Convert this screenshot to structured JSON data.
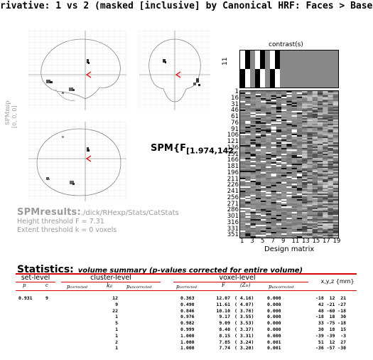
{
  "title": "rivative: 1 vs 2 (masked [inclusive] by Canonical HRF: Faces > Base",
  "glass_brain": {
    "side_label": "SPMmip",
    "side_coords": "[0, 0, 0]"
  },
  "contrast": {
    "title": "contrast(s)",
    "number": "11"
  },
  "design_matrix": {
    "xlabel": "Design matrix",
    "row_ticks": [
      "1",
      "16",
      "31",
      "46",
      "61",
      "76",
      "91",
      "106",
      "121",
      "136",
      "151",
      "166",
      "181",
      "196",
      "211",
      "226",
      "241",
      "256",
      "271",
      "286",
      "301",
      "316",
      "331",
      "351"
    ],
    "col_ticks": [
      "1",
      "3",
      "5",
      "7",
      "9",
      "11",
      "13",
      "15",
      "17",
      "19"
    ]
  },
  "spm_stat": {
    "main": "SPM{F",
    "df": "[1.974,142."
  },
  "results": {
    "heading": "SPMresults:",
    "path": "./dick/RHexp/Stats/CatStats",
    "height": "Height threshold F = 7.31",
    "extent": "Extent threshold k = 0 voxels"
  },
  "stats": {
    "heading": "Statistics:",
    "subheading": "volume summary (p-values corrected for entire volume)",
    "set_level": "set-level",
    "cluster_level": "cluster-level",
    "voxel_level": "voxel-level",
    "xyz": "x,y,z {mm}",
    "col_p": "p",
    "col_c": "c",
    "col_pc": "p",
    "col_pc_sub": "corrected",
    "col_ke": "k",
    "col_ke_sub": "E",
    "col_pu": "p",
    "col_pu_sub": "uncorrected",
    "col_vpc": "p",
    "col_vpc_sub": "corrected",
    "col_F": "F",
    "col_Z": "(Z",
    "col_Z_sub": "≡",
    "col_Z_end": ")",
    "col_vpu": "p",
    "col_vpu_sub": "uncorrected",
    "set_p": "0.931",
    "set_c": "9",
    "rows": [
      {
        "ke": "12",
        "pc": "0.363",
        "F": "12.07",
        "Z": "( 4.16)",
        "pu": "0.000",
        "xyz": "-18  12  21"
      },
      {
        "ke": "9",
        "pc": "0.490",
        "F": "11.61",
        "Z": "( 4.07)",
        "pu": "0.000",
        "xyz": " 42 -21 -27"
      },
      {
        "ke": "22",
        "pc": "0.846",
        "F": "10.10",
        "Z": "( 3.76)",
        "pu": "0.000",
        "xyz": " 48 -60 -18"
      },
      {
        "ke": "1",
        "pc": "0.976",
        "F": "9.17",
        "Z": "( 3.55)",
        "pu": "0.000",
        "xyz": "-18  18  30"
      },
      {
        "ke": "5",
        "pc": "0.982",
        "F": "9.09",
        "Z": "( 3.53)",
        "pu": "0.000",
        "xyz": " 33 -75 -18"
      },
      {
        "ke": "1",
        "pc": "0.999",
        "F": "8.40",
        "Z": "( 3.37)",
        "pu": "0.000",
        "xyz": " 30  18  15"
      },
      {
        "ke": "1",
        "pc": "1.000",
        "F": "8.15",
        "Z": "( 3.31)",
        "pu": "0.000",
        "xyz": "-39 -39  -3"
      },
      {
        "ke": "2",
        "pc": "1.000",
        "F": "7.85",
        "Z": "( 3.24)",
        "pu": "0.001",
        "xyz": " 51  12  27"
      },
      {
        "ke": "1",
        "pc": "1.000",
        "F": "7.74",
        "Z": "( 3.20)",
        "pu": "0.001",
        "xyz": "-36 -57 -30"
      }
    ]
  }
}
